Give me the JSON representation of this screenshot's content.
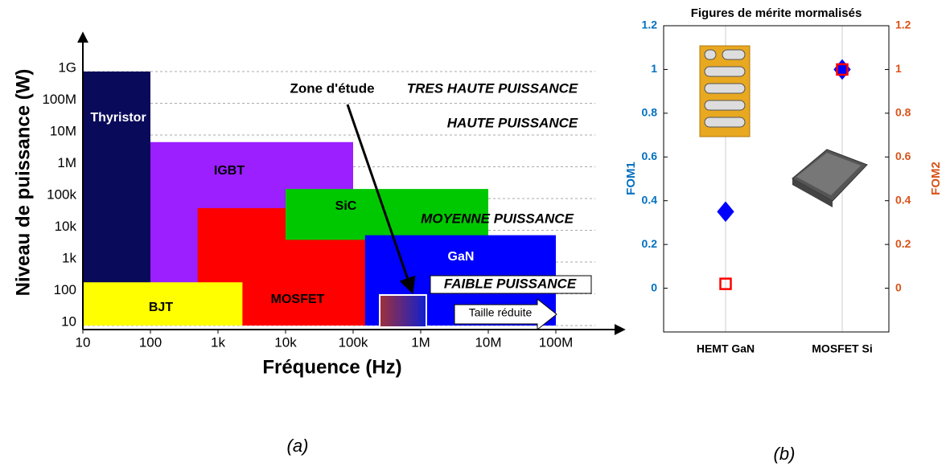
{
  "chart_data": [
    {
      "type": "region",
      "x_label": "Fréquence (Hz)",
      "y_label": "Niveau de puissance (W)",
      "xlog": true,
      "ylog": true,
      "grid": true,
      "xlim": [
        10,
        1000000000
      ],
      "ylim": [
        10,
        10000000000
      ],
      "xticks": [
        10,
        100,
        {
          "value": 1000,
          "label": "1k"
        },
        {
          "value": 10000,
          "label": "10k"
        },
        {
          "value": 100000,
          "label": "100k"
        },
        {
          "value": 1000000,
          "label": "1M"
        },
        {
          "value": 10000000,
          "label": "10M"
        },
        {
          "value": 100000000,
          "label": "100M"
        }
      ],
      "yticks": [
        10,
        100,
        {
          "value": 1000,
          "label": "1k"
        },
        {
          "value": 10000,
          "label": "10k"
        },
        {
          "value": 100000,
          "label": "100k"
        },
        {
          "value": 1000000,
          "label": "1M"
        },
        {
          "value": 10000000,
          "label": "10M"
        },
        {
          "value": 100000000,
          "label": "100M"
        },
        {
          "value": 1000000000,
          "label": "1G"
        }
      ],
      "regions": [
        {
          "name": "Thyristor",
          "color": "#0a0a5a",
          "x": [
            10,
            100
          ],
          "y": [
            10,
            1000000000
          ]
        },
        {
          "name": "IGBT",
          "color": "#9b1fff",
          "x": [
            100,
            100000
          ],
          "y": [
            200,
            6000000
          ]
        },
        {
          "name": "MOSFET",
          "color": "#ff0000",
          "x": [
            500,
            1500000
          ],
          "y": [
            10,
            50000
          ]
        },
        {
          "name": "SiC",
          "color": "#00c800",
          "x": [
            10000,
            10000000
          ],
          "y": [
            5000,
            200000
          ]
        },
        {
          "name": "GaN",
          "color": "#0000ff",
          "x": [
            150000,
            100000000
          ],
          "y": [
            10,
            7000
          ]
        },
        {
          "name": "BJT",
          "color": "#ffff00",
          "x": [
            10,
            2300
          ],
          "y": [
            10,
            230
          ]
        }
      ],
      "annotations": [
        "Zone d'étude",
        "TRES HAUTE PUISSANCE",
        "HAUTE PUISSANCE",
        "MOYENNE PUISSANCE",
        "FAIBLE PUISSANCE",
        "Taille réduite"
      ],
      "caption": "(a)"
    },
    {
      "type": "scatter",
      "title": "Figures de mérite mormalisés",
      "categories": [
        "HEMT GaN",
        "MOSFET Si"
      ],
      "y_label": "FOM1",
      "y2_label": "FOM2",
      "ylim": [
        -0.2,
        1.2
      ],
      "yticks": [
        0,
        0.2,
        0.4,
        0.6,
        0.8,
        1,
        1.2
      ],
      "y2lim": [
        -0.2,
        1.2
      ],
      "y2ticks": [
        0,
        0.2,
        0.4,
        0.6,
        0.8,
        1,
        1.2
      ],
      "series": [
        {
          "name": "FOM1",
          "color": "#0000ff",
          "marker": "diamond",
          "values": [
            0.35,
            1
          ]
        },
        {
          "name": "FOM2",
          "color": "#ff0000",
          "marker": "square",
          "axis": "y2",
          "values": [
            0.02,
            1
          ]
        }
      ],
      "caption": "(b)"
    }
  ]
}
